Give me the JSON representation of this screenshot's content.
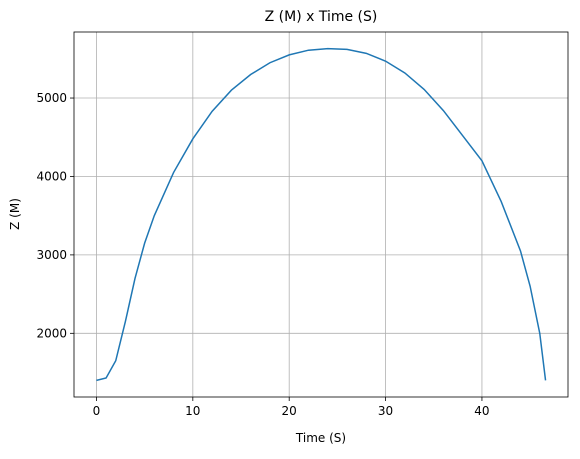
{
  "chart_data": {
    "type": "line",
    "title": "Z (M) x Time (S)",
    "x_label": "Time (S)",
    "y_label": "Z (M)",
    "x": [
      0,
      1,
      2,
      3,
      4,
      5,
      6,
      8,
      10,
      12,
      14,
      16,
      18,
      20,
      22,
      24,
      26,
      28,
      30,
      32,
      34,
      36,
      38,
      40,
      42,
      44,
      45,
      46,
      46.6
    ],
    "series": [
      {
        "name": "Z",
        "color": "#1f77b4",
        "values": [
          1400,
          1430,
          1650,
          2150,
          2700,
          3150,
          3500,
          4050,
          4480,
          4830,
          5100,
          5300,
          5450,
          5550,
          5610,
          5630,
          5620,
          5570,
          5470,
          5320,
          5110,
          4840,
          4520,
          4200,
          3680,
          3050,
          2600,
          2000,
          1400
        ]
      }
    ],
    "xlim": [
      -2.33,
      48.93
    ],
    "xticks": [
      0,
      10,
      20,
      30,
      40
    ],
    "ylim": [
      1188,
      5842
    ],
    "yticks": [
      2000,
      3000,
      4000,
      5000
    ],
    "grid": true
  }
}
